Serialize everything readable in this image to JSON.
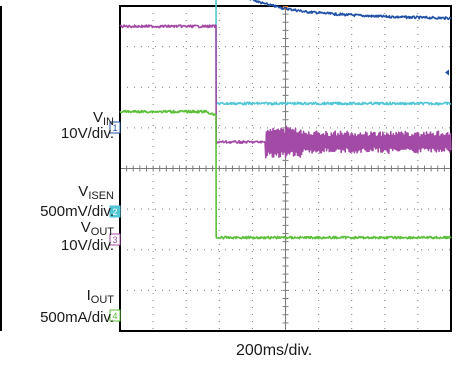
{
  "labels": {
    "vin": {
      "name": "V",
      "sub": "IN",
      "scale": "10V/div."
    },
    "visen": {
      "name": "V",
      "sub": "ISEN",
      "scale": "500mV/div."
    },
    "vout": {
      "name": "V",
      "sub": "OUT",
      "scale": "10V/div."
    },
    "iout": {
      "name": "I",
      "sub": "OUT",
      "scale": "500mA/div."
    }
  },
  "x_scale_label": "200ms/div.",
  "colors": {
    "vin": "#2151a6",
    "visen": "#53c6d6",
    "vout": "#a34aa6",
    "iout": "#5cbf3a",
    "frame": "#000000",
    "grid": "#7a7a7a",
    "trigger": "#e07020"
  },
  "chart_data": {
    "type": "line",
    "title": "",
    "xlabel": "200ms/div.",
    "ylabel": "",
    "x_unit": "ms",
    "x_per_div": 200,
    "x_divisions": 10,
    "xlim": [
      0,
      2000
    ],
    "y_divisions": 8,
    "grid": true,
    "series": [
      {
        "name": "VIN",
        "channel": "1",
        "scale": "10V/div.",
        "x": [
          0,
          580,
          581,
          620,
          680,
          760,
          860,
          980,
          1120,
          1300,
          1520,
          1760,
          2000
        ],
        "y": [
          7.0,
          7.0,
          4.8,
          4.6,
          4.4,
          4.22,
          4.07,
          3.95,
          3.86,
          3.8,
          3.75,
          3.72,
          3.7
        ]
      },
      {
        "name": "VISEN",
        "channel": "2",
        "scale": "500mV/div.",
        "x": [
          0,
          580,
          581,
          2000
        ],
        "y": [
          4.6,
          4.6,
          1.6,
          1.6
        ]
      },
      {
        "name": "VOUT",
        "channel": "3",
        "scale": "10V/div.",
        "x": [
          0,
          580,
          581,
          2000
        ],
        "y": [
          3.5,
          3.5,
          0.65,
          0.65
        ]
      },
      {
        "name": "IOUT",
        "channel": "4",
        "scale": "500mA/div.",
        "x": [
          0,
          520,
          580,
          581,
          2000
        ],
        "y": [
          1.4,
          1.4,
          1.3,
          -1.7,
          -1.7
        ]
      }
    ],
    "annotations": [
      "VOUT ringing burst from approx. 880 ms to 2000 ms"
    ]
  }
}
